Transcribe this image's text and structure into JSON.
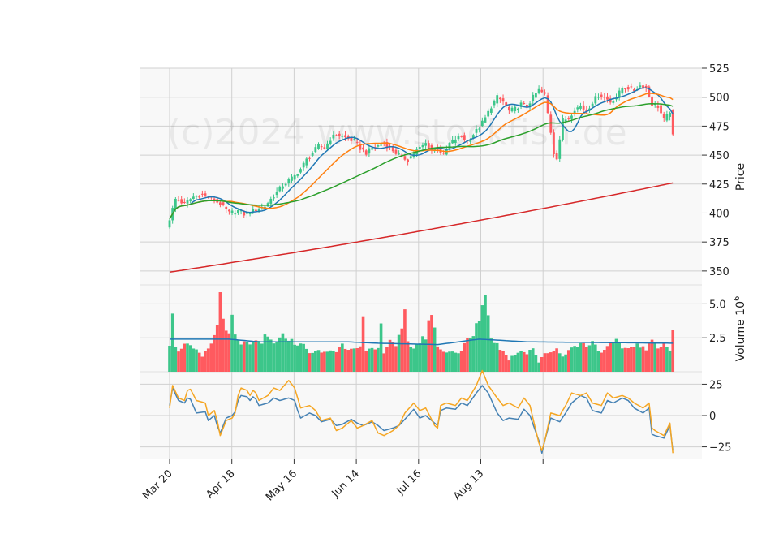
{
  "chart_data": {
    "type": "candlestick",
    "watermark": "(c)2024 www.stockfish.de",
    "x_tick_labels": [
      "Mar 20",
      "Apr 18",
      "May 16",
      "Jun 14",
      "Jul 16",
      "Aug 13"
    ],
    "x_tick_dates": [
      "2024-03-20",
      "2024-04-18",
      "2024-05-16",
      "2024-06-14",
      "2024-07-16",
      "2024-08-13"
    ],
    "colors": {
      "up": "#3cc68a",
      "down": "#ff5a5f",
      "ma_fast": "#1f77b4",
      "ma_mid": "#ff7f0e",
      "ma_slow": "#2ca02c",
      "ma_long": "#d62728",
      "vol_ma": "#1f77b4",
      "osc_a": "#4682b4",
      "osc_b": "#f5a623",
      "grid": "#d0d0d0",
      "panel_bg": "#f8f8f8"
    },
    "panels": [
      {
        "name": "price",
        "ylabel": "Price",
        "yticks": [
          350,
          375,
          400,
          425,
          450,
          475,
          500,
          525
        ],
        "ylim": [
          338,
          525
        ]
      },
      {
        "name": "volume",
        "ylabel": "Volume  10^6",
        "ylabel_text": "Volume",
        "ylabel_exp": "6",
        "ylabel_base": "10",
        "yticks": [
          2.5,
          5.0
        ],
        "ytick_labels": [
          "2.5",
          "5.0"
        ],
        "ylim": [
          0,
          6.4
        ]
      },
      {
        "name": "oscillator",
        "ylabel": "",
        "yticks": [
          -25,
          0,
          25
        ],
        "ytick_labels": [
          "−25",
          "0",
          "25"
        ],
        "ylim": [
          -35,
          35
        ]
      }
    ],
    "anchors": {
      "close": [
        [
          0,
          395
        ],
        [
          2,
          412
        ],
        [
          5,
          408
        ],
        [
          8,
          414
        ],
        [
          11,
          416
        ],
        [
          14,
          412
        ],
        [
          17,
          408
        ],
        [
          20,
          400
        ],
        [
          23,
          402
        ],
        [
          25,
          399
        ],
        [
          27,
          401
        ],
        [
          30,
          404
        ],
        [
          32,
          406
        ],
        [
          34,
          412
        ],
        [
          36,
          418
        ],
        [
          38,
          424
        ],
        [
          40,
          428
        ],
        [
          42,
          432
        ],
        [
          44,
          438
        ],
        [
          46,
          446
        ],
        [
          48,
          452
        ],
        [
          50,
          458
        ],
        [
          52,
          456
        ],
        [
          54,
          464
        ],
        [
          56,
          468
        ],
        [
          58,
          466
        ],
        [
          60,
          464
        ],
        [
          62,
          462
        ],
        [
          64,
          456
        ],
        [
          66,
          452
        ],
        [
          68,
          456
        ],
        [
          70,
          458
        ],
        [
          72,
          460
        ],
        [
          74,
          456
        ],
        [
          76,
          452
        ],
        [
          78,
          448
        ],
        [
          80,
          446
        ],
        [
          82,
          452
        ],
        [
          84,
          456
        ],
        [
          86,
          460
        ],
        [
          88,
          454
        ],
        [
          90,
          456
        ],
        [
          92,
          450
        ],
        [
          94,
          460
        ],
        [
          96,
          464
        ],
        [
          98,
          466
        ],
        [
          100,
          462
        ],
        [
          102,
          468
        ],
        [
          104,
          474
        ],
        [
          106,
          482
        ],
        [
          108,
          492
        ],
        [
          110,
          500
        ],
        [
          112,
          496
        ],
        [
          114,
          488
        ],
        [
          116,
          490
        ],
        [
          118,
          494
        ],
        [
          120,
          492
        ],
        [
          122,
          500
        ],
        [
          124,
          506
        ],
        [
          126,
          502
        ],
        [
          128,
          470
        ],
        [
          129,
          452
        ],
        [
          130,
          448
        ],
        [
          132,
          480
        ],
        [
          134,
          482
        ],
        [
          136,
          490
        ],
        [
          138,
          492
        ],
        [
          140,
          488
        ],
        [
          142,
          496
        ],
        [
          144,
          502
        ],
        [
          146,
          500
        ],
        [
          148,
          496
        ],
        [
          150,
          500
        ],
        [
          152,
          508
        ],
        [
          154,
          508
        ],
        [
          156,
          506
        ],
        [
          158,
          510
        ],
        [
          160,
          508
        ],
        [
          162,
          494
        ],
        [
          164,
          492
        ],
        [
          166,
          480
        ],
        [
          168,
          488
        ],
        [
          169,
          466
        ]
      ],
      "volume": [
        [
          0,
          2.1
        ],
        [
          1,
          4.6
        ],
        [
          2,
          2.0
        ],
        [
          3,
          1.4
        ],
        [
          5,
          2.2
        ],
        [
          7,
          1.8
        ],
        [
          9,
          1.5
        ],
        [
          11,
          1.1
        ],
        [
          13,
          1.7
        ],
        [
          15,
          2.6
        ],
        [
          16,
          3.4
        ],
        [
          17,
          5.9
        ],
        [
          18,
          4.3
        ],
        [
          19,
          2.8
        ],
        [
          20,
          2.6
        ],
        [
          21,
          4.1
        ],
        [
          22,
          2.6
        ],
        [
          24,
          1.9
        ],
        [
          26,
          2.3
        ],
        [
          28,
          2.0
        ],
        [
          30,
          2.2
        ],
        [
          31,
          1.9
        ],
        [
          32,
          2.7
        ],
        [
          34,
          2.3
        ],
        [
          36,
          2.1
        ],
        [
          38,
          2.6
        ],
        [
          40,
          2.5
        ],
        [
          42,
          2.0
        ],
        [
          44,
          2.2
        ],
        [
          46,
          1.6
        ],
        [
          48,
          1.4
        ],
        [
          50,
          1.5
        ],
        [
          52,
          1.4
        ],
        [
          54,
          1.6
        ],
        [
          56,
          1.5
        ],
        [
          58,
          2.0
        ],
        [
          60,
          1.7
        ],
        [
          62,
          1.9
        ],
        [
          64,
          1.8
        ],
        [
          65,
          3.8
        ],
        [
          66,
          1.5
        ],
        [
          68,
          1.6
        ],
        [
          70,
          1.7
        ],
        [
          71,
          3.3
        ],
        [
          72,
          1.5
        ],
        [
          74,
          2.4
        ],
        [
          76,
          2.0
        ],
        [
          78,
          3.0
        ],
        [
          79,
          4.2
        ],
        [
          80,
          2.1
        ],
        [
          82,
          1.8
        ],
        [
          84,
          2.2
        ],
        [
          86,
          2.6
        ],
        [
          87,
          3.8
        ],
        [
          88,
          3.9
        ],
        [
          89,
          3.5
        ],
        [
          90,
          1.9
        ],
        [
          92,
          1.4
        ],
        [
          94,
          1.6
        ],
        [
          96,
          1.4
        ],
        [
          98,
          1.5
        ],
        [
          100,
          2.4
        ],
        [
          102,
          2.6
        ],
        [
          104,
          4.0
        ],
        [
          106,
          5.9
        ],
        [
          107,
          4.0
        ],
        [
          108,
          2.6
        ],
        [
          110,
          2.0
        ],
        [
          112,
          1.5
        ],
        [
          114,
          0.9
        ],
        [
          116,
          1.3
        ],
        [
          118,
          1.6
        ],
        [
          120,
          1.4
        ],
        [
          122,
          1.8
        ],
        [
          124,
          0.7
        ],
        [
          126,
          1.3
        ],
        [
          128,
          1.5
        ],
        [
          130,
          1.7
        ],
        [
          132,
          1.1
        ],
        [
          134,
          1.7
        ],
        [
          136,
          1.8
        ],
        [
          138,
          2.1
        ],
        [
          140,
          1.9
        ],
        [
          142,
          2.3
        ],
        [
          144,
          1.6
        ],
        [
          146,
          1.5
        ],
        [
          148,
          2.0
        ],
        [
          150,
          2.2
        ],
        [
          152,
          1.8
        ],
        [
          154,
          1.7
        ],
        [
          156,
          2.0
        ],
        [
          158,
          1.9
        ],
        [
          160,
          1.6
        ],
        [
          162,
          2.3
        ],
        [
          164,
          1.9
        ],
        [
          166,
          2.1
        ],
        [
          168,
          1.6
        ],
        [
          169,
          3.1
        ]
      ],
      "osc_a": [
        [
          0,
          8
        ],
        [
          1,
          22
        ],
        [
          3,
          12
        ],
        [
          4,
          10
        ],
        [
          5,
          14
        ],
        [
          6,
          13
        ],
        [
          8,
          2
        ],
        [
          10,
          3
        ],
        [
          11,
          -4
        ],
        [
          12,
          -2
        ],
        [
          13,
          0
        ],
        [
          14,
          -8
        ],
        [
          15,
          -14
        ],
        [
          16,
          -2
        ],
        [
          18,
          0
        ],
        [
          19,
          3
        ],
        [
          20,
          12
        ],
        [
          21,
          16
        ],
        [
          22,
          15
        ],
        [
          23,
          12
        ],
        [
          24,
          15
        ],
        [
          25,
          13
        ],
        [
          26,
          8
        ],
        [
          28,
          10
        ],
        [
          30,
          14
        ],
        [
          32,
          12
        ],
        [
          34,
          14
        ],
        [
          36,
          12
        ],
        [
          37,
          4
        ],
        [
          38,
          -2
        ],
        [
          40,
          2
        ],
        [
          42,
          0
        ],
        [
          44,
          -5
        ],
        [
          46,
          -3
        ],
        [
          48,
          -8
        ],
        [
          50,
          -7
        ],
        [
          52,
          -3
        ],
        [
          54,
          -6
        ],
        [
          56,
          -8
        ],
        [
          58,
          -5
        ],
        [
          60,
          -8
        ],
        [
          62,
          -12
        ],
        [
          64,
          -10
        ],
        [
          66,
          -8
        ],
        [
          68,
          -3
        ],
        [
          70,
          5
        ],
        [
          72,
          -2
        ],
        [
          74,
          0
        ],
        [
          76,
          -6
        ],
        [
          77,
          -8
        ],
        [
          78,
          4
        ],
        [
          80,
          6
        ],
        [
          82,
          5
        ],
        [
          84,
          10
        ],
        [
          86,
          8
        ],
        [
          88,
          18
        ],
        [
          90,
          24
        ],
        [
          92,
          18
        ],
        [
          94,
          2
        ],
        [
          96,
          -4
        ],
        [
          98,
          -2
        ],
        [
          100,
          -3
        ],
        [
          102,
          5
        ],
        [
          104,
          0
        ],
        [
          106,
          -20
        ],
        [
          107,
          -30
        ],
        [
          108,
          -20
        ],
        [
          110,
          -2
        ],
        [
          112,
          -5
        ],
        [
          114,
          2
        ],
        [
          116,
          10
        ],
        [
          118,
          16
        ],
        [
          120,
          14
        ],
        [
          122,
          4
        ],
        [
          124,
          2
        ],
        [
          126,
          12
        ],
        [
          128,
          10
        ],
        [
          130,
          14
        ],
        [
          132,
          12
        ],
        [
          134,
          6
        ],
        [
          136,
          2
        ],
        [
          138,
          6
        ],
        [
          139,
          -15
        ],
        [
          140,
          -16
        ],
        [
          142,
          -18
        ],
        [
          144,
          -8
        ],
        [
          145,
          -28
        ]
      ],
      "osc_b": [
        [
          0,
          6
        ],
        [
          1,
          24
        ],
        [
          3,
          14
        ],
        [
          4,
          12
        ],
        [
          5,
          20
        ],
        [
          6,
          21
        ],
        [
          8,
          12
        ],
        [
          10,
          10
        ],
        [
          11,
          0
        ],
        [
          12,
          2
        ],
        [
          13,
          4
        ],
        [
          14,
          -4
        ],
        [
          15,
          -16
        ],
        [
          16,
          -4
        ],
        [
          18,
          -2
        ],
        [
          19,
          2
        ],
        [
          20,
          16
        ],
        [
          21,
          22
        ],
        [
          22,
          20
        ],
        [
          23,
          16
        ],
        [
          24,
          20
        ],
        [
          25,
          18
        ],
        [
          26,
          12
        ],
        [
          28,
          16
        ],
        [
          30,
          22
        ],
        [
          32,
          20
        ],
        [
          34,
          28
        ],
        [
          36,
          22
        ],
        [
          37,
          14
        ],
        [
          38,
          6
        ],
        [
          40,
          8
        ],
        [
          42,
          4
        ],
        [
          44,
          -4
        ],
        [
          46,
          -2
        ],
        [
          48,
          -12
        ],
        [
          50,
          -10
        ],
        [
          52,
          -4
        ],
        [
          54,
          -10
        ],
        [
          56,
          -8
        ],
        [
          58,
          -4
        ],
        [
          60,
          -14
        ],
        [
          62,
          -16
        ],
        [
          64,
          -12
        ],
        [
          66,
          -8
        ],
        [
          68,
          2
        ],
        [
          70,
          10
        ],
        [
          72,
          4
        ],
        [
          74,
          6
        ],
        [
          76,
          -8
        ],
        [
          77,
          -10
        ],
        [
          78,
          8
        ],
        [
          80,
          10
        ],
        [
          82,
          8
        ],
        [
          84,
          14
        ],
        [
          86,
          12
        ],
        [
          88,
          24
        ],
        [
          90,
          36
        ],
        [
          92,
          24
        ],
        [
          94,
          14
        ],
        [
          96,
          8
        ],
        [
          98,
          10
        ],
        [
          100,
          6
        ],
        [
          102,
          14
        ],
        [
          104,
          8
        ],
        [
          106,
          -22
        ],
        [
          107,
          -28
        ],
        [
          108,
          -20
        ],
        [
          110,
          2
        ],
        [
          112,
          0
        ],
        [
          114,
          8
        ],
        [
          116,
          18
        ],
        [
          118,
          16
        ],
        [
          120,
          18
        ],
        [
          122,
          10
        ],
        [
          124,
          8
        ],
        [
          126,
          18
        ],
        [
          128,
          14
        ],
        [
          130,
          16
        ],
        [
          132,
          14
        ],
        [
          134,
          10
        ],
        [
          136,
          6
        ],
        [
          138,
          10
        ],
        [
          139,
          -10
        ],
        [
          140,
          -12
        ],
        [
          142,
          -16
        ],
        [
          144,
          -6
        ],
        [
          145,
          -30
        ]
      ]
    },
    "ma_long": {
      "start": 349,
      "end": 426
    },
    "vol_ma": [
      [
        0,
        2.4
      ],
      [
        20,
        2.4
      ],
      [
        30,
        2.2
      ],
      [
        60,
        2.2
      ],
      [
        70,
        2.1
      ],
      [
        90,
        2.0
      ],
      [
        104,
        2.4
      ],
      [
        120,
        2.2
      ],
      [
        169,
        2.1
      ]
    ]
  }
}
